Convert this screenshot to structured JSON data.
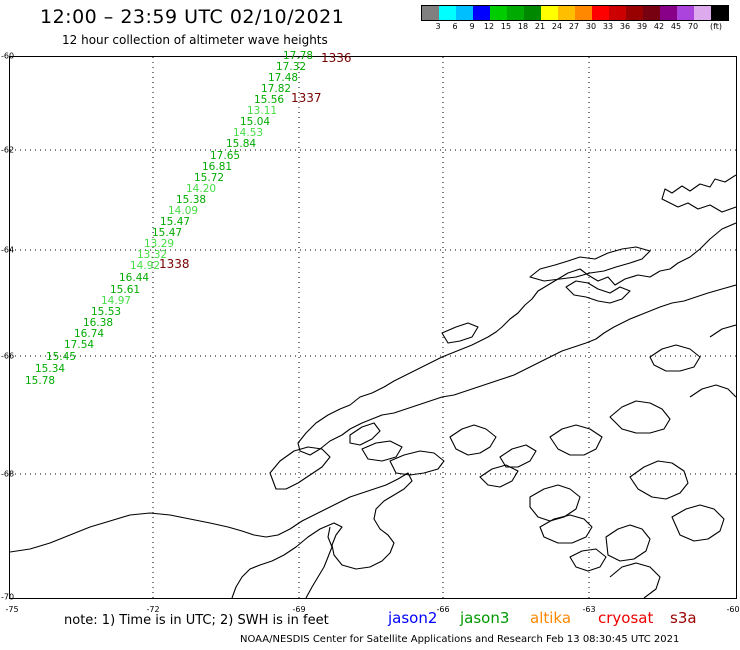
{
  "header": {
    "title": "12:00 – 23:59 UTC 02/10/2021",
    "subtitle": "12 hour collection of altimeter wave heights"
  },
  "legend": {
    "colors": [
      "#808080",
      "#00ffff",
      "#00bfff",
      "#0000ff",
      "#00cc00",
      "#00aa00",
      "#008800",
      "#ffff00",
      "#ffbf00",
      "#ff8800",
      "#ff0000",
      "#cc0000",
      "#990000",
      "#770011",
      "#880088",
      "#aa44dd",
      "#ddaaee",
      "#000000"
    ],
    "tick_labels": [
      "3",
      "6",
      "9",
      "12",
      "15",
      "18",
      "21",
      "24",
      "27",
      "30",
      "33",
      "36",
      "39",
      "42",
      "45",
      "70",
      "(ft)"
    ]
  },
  "map": {
    "lat_labels": [
      "-60",
      "-62",
      "-64",
      "-66",
      "-68",
      "-70"
    ],
    "lon_labels": [
      "-75",
      "-72",
      "-69",
      "-66",
      "-63",
      "-60"
    ],
    "observations": [
      {
        "label": "17.78",
        "color": "#00aa00"
      },
      {
        "label": "17.32",
        "color": "#00aa00"
      },
      {
        "label": "17.48",
        "color": "#00aa00"
      },
      {
        "label": "17.82",
        "color": "#00aa00"
      },
      {
        "label": "15.56",
        "color": "#00aa00"
      },
      {
        "label": "13.11",
        "color": "#44dd44"
      },
      {
        "label": "15.04",
        "color": "#00aa00"
      },
      {
        "label": "14.53",
        "color": "#44dd44"
      },
      {
        "label": "15.84",
        "color": "#00aa00"
      },
      {
        "label": "17.65",
        "color": "#00aa00"
      },
      {
        "label": "16.81",
        "color": "#00aa00"
      },
      {
        "label": "15.72",
        "color": "#00aa00"
      },
      {
        "label": "14.20",
        "color": "#44dd44"
      },
      {
        "label": "15.38",
        "color": "#00aa00"
      },
      {
        "label": "14.09",
        "color": "#44dd44"
      },
      {
        "label": "15.47",
        "color": "#00aa00"
      },
      {
        "label": "15.47",
        "color": "#00aa00"
      },
      {
        "label": "13.29",
        "color": "#44dd44"
      },
      {
        "label": "13.32",
        "color": "#44dd44"
      },
      {
        "label": "14.92",
        "color": "#44dd44"
      },
      {
        "label": "16.44",
        "color": "#00aa00"
      },
      {
        "label": "15.61",
        "color": "#00aa00"
      },
      {
        "label": "14.97",
        "color": "#44dd44"
      },
      {
        "label": "15.53",
        "color": "#00aa00"
      },
      {
        "label": "16.38",
        "color": "#00aa00"
      },
      {
        "label": "16.74",
        "color": "#00aa00"
      },
      {
        "label": "17.54",
        "color": "#00aa00"
      },
      {
        "label": "15.45",
        "color": "#00aa00"
      },
      {
        "label": "15.34",
        "color": "#00aa00"
      },
      {
        "label": "15.78",
        "color": "#00aa00"
      }
    ],
    "pass_labels": [
      {
        "label": "1336",
        "color": "#770000"
      },
      {
        "label": "1337",
        "color": "#770000"
      },
      {
        "label": "1338",
        "color": "#770000"
      }
    ]
  },
  "note": "note:  1) Time is in UTC;  2) SWH is in feet",
  "satellites": [
    {
      "name": "jason2",
      "color": "#0000ff"
    },
    {
      "name": "jason3",
      "color": "#009900"
    },
    {
      "name": "altika",
      "color": "#ff8800"
    },
    {
      "name": "cryosat",
      "color": "#ee0000"
    },
    {
      "name": "s3a",
      "color": "#990000"
    }
  ],
  "footer": "NOAA/NESDIS Center for Satellite Applications and Research     Feb 13 08:30:45 UTC 2021"
}
